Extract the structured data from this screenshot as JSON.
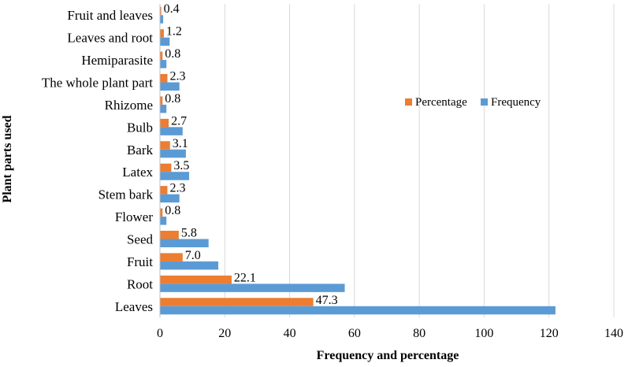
{
  "chart_data": {
    "type": "bar",
    "orientation": "horizontal",
    "categories": [
      "Leaves",
      "Root",
      "Fruit",
      "Seed",
      "Flower",
      "Stem bark",
      "Latex",
      "Bark",
      "Bulb",
      "Rhizome",
      "The whole plant part",
      "Hemiparasite",
      "Leaves and root",
      "Fruit and leaves"
    ],
    "series": [
      {
        "name": "Percentage",
        "color": "#ED7D31",
        "values": [
          47.3,
          22.1,
          7.0,
          5.8,
          0.8,
          2.3,
          3.5,
          3.1,
          2.7,
          0.8,
          2.3,
          0.8,
          1.2,
          0.4
        ]
      },
      {
        "name": "Frequency",
        "color": "#5B9BD5",
        "values": [
          122,
          57,
          18,
          15,
          2,
          6,
          9,
          8,
          7,
          2,
          6,
          2,
          3,
          1
        ]
      }
    ],
    "data_labels": [
      "47.3",
      "22.1",
      "7.0",
      "5.8",
      "0.8",
      "2.3",
      "3.5",
      "3.1",
      "2.7",
      "0.8",
      "2.3",
      "0.8",
      "1.2",
      "0.4"
    ],
    "xlabel": "Frequency and percentage",
    "ylabel": "Plant parts used",
    "xlim": [
      0,
      140
    ],
    "xticks": [
      "0",
      "20",
      "40",
      "60",
      "80",
      "100",
      "120",
      "140"
    ],
    "grid": true,
    "legend_position": "right-middle"
  }
}
